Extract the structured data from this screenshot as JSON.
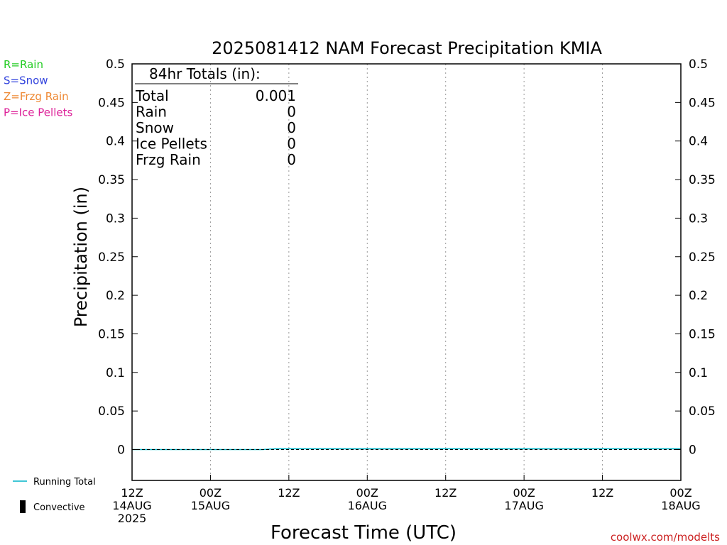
{
  "chart_data": {
    "type": "area",
    "title": "2025081412 NAM Forecast Precipitation KMIA",
    "xlabel": "Forecast Time (UTC)",
    "ylabel": "Precipitation (in)",
    "ylim": [
      -0.04,
      0.5
    ],
    "y_ticks": [
      0,
      0.05,
      0.1,
      0.15,
      0.2,
      0.25,
      0.3,
      0.35,
      0.4,
      0.45,
      0.5
    ],
    "y_tick_labels": [
      "0",
      "0.05",
      "0.1",
      "0.15",
      "0.2",
      "0.25",
      "0.3",
      "0.35",
      "0.4",
      "0.45",
      "0.5"
    ],
    "xlim_hours": [
      0,
      84
    ],
    "x_ticks": [
      {
        "hour": 0,
        "line1": "12Z",
        "line2": "14AUG",
        "line3": "2025"
      },
      {
        "hour": 12,
        "line1": "00Z",
        "line2": "15AUG",
        "line3": ""
      },
      {
        "hour": 24,
        "line1": "12Z",
        "line2": "",
        "line3": ""
      },
      {
        "hour": 36,
        "line1": "00Z",
        "line2": "16AUG",
        "line3": ""
      },
      {
        "hour": 48,
        "line1": "12Z",
        "line2": "",
        "line3": ""
      },
      {
        "hour": 60,
        "line1": "00Z",
        "line2": "17AUG",
        "line3": ""
      },
      {
        "hour": 72,
        "line1": "12Z",
        "line2": "",
        "line3": ""
      },
      {
        "hour": 84,
        "line1": "00Z",
        "line2": "18AUG",
        "line3": ""
      }
    ],
    "grid": "vertical dotted",
    "series": [
      {
        "name": "Running Total",
        "color": "#00b4c8",
        "x_hours": [
          0,
          6,
          12,
          18,
          20,
          22,
          24,
          30,
          36,
          48,
          60,
          72,
          84
        ],
        "values": [
          0,
          0,
          0,
          0,
          0,
          0.001,
          0.001,
          0.001,
          0.001,
          0.001,
          0.001,
          0.001,
          0.001
        ]
      }
    ],
    "totals_box": {
      "heading": "84hr Totals (in):",
      "rows": [
        {
          "label": "Total",
          "value": "0.001"
        },
        {
          "label": "Rain",
          "value": "0"
        },
        {
          "label": "Snow",
          "value": "0"
        },
        {
          "label": "Ice Pellets",
          "value": "0"
        },
        {
          "label": "Frzg Rain",
          "value": "0"
        }
      ]
    },
    "type_legend": [
      {
        "text": "R=Rain",
        "color": "#22cc22"
      },
      {
        "text": "S=Snow",
        "color": "#3344dd"
      },
      {
        "text": "Z=Frzg Rain",
        "color": "#ee8833"
      },
      {
        "text": "P=Ice Pellets",
        "color": "#dd2299"
      }
    ],
    "bottom_legend": [
      {
        "text": "Running Total",
        "symbol": "line",
        "color": "#00b4c8"
      },
      {
        "text": "Convective",
        "symbol": "bar",
        "color": "#000000"
      }
    ],
    "credit": "coolwx.com/modelts",
    "credit_color": "#cc2222"
  }
}
